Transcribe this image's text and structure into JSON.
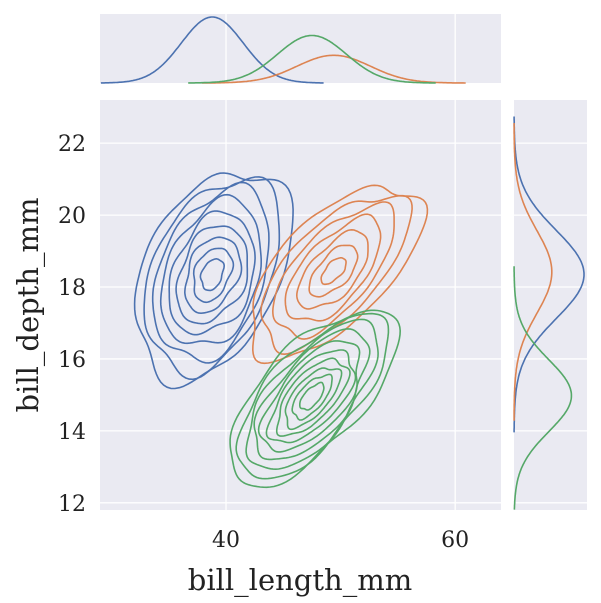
{
  "chart_data": {
    "type": "kde-joint",
    "xlabel": "bill_length_mm",
    "ylabel": "bill_depth_mm",
    "xlim": [
      29,
      64
    ],
    "ylim": [
      11.8,
      23.2
    ],
    "xticks": [
      40,
      60
    ],
    "yticks": [
      12,
      14,
      16,
      18,
      20,
      22
    ],
    "grid": true,
    "legend": "none",
    "series": [
      {
        "color": "#4c72b0",
        "joint": {
          "center": [
            38.8,
            18.35
          ],
          "sd": [
            2.8,
            1.25
          ],
          "corr": 0.32,
          "levels": 9
        },
        "marginal_x": {
          "mean": 38.8,
          "sd": 2.7,
          "peak": 1.0
        },
        "marginal_y": {
          "mean": 18.35,
          "sd": 1.22,
          "peak": 1.0
        }
      },
      {
        "color": "#dd8452",
        "joint": {
          "center": [
            49.4,
            18.45
          ],
          "sd": [
            3.1,
            1.05
          ],
          "corr": 0.62,
          "levels": 7
        },
        "marginal_x": {
          "mean": 49.4,
          "sd": 3.2,
          "peak": 0.42
        },
        "marginal_y": {
          "mean": 18.42,
          "sd": 1.15,
          "peak": 0.54
        }
      },
      {
        "color": "#55a868",
        "joint": {
          "center": [
            47.5,
            14.95
          ],
          "sd": [
            3.0,
            1.05
          ],
          "corr": 0.64,
          "levels": 10
        },
        "marginal_x": {
          "mean": 47.5,
          "sd": 3.0,
          "peak": 0.72
        },
        "marginal_y": {
          "mean": 14.98,
          "sd": 1.0,
          "peak": 0.82
        }
      }
    ]
  }
}
